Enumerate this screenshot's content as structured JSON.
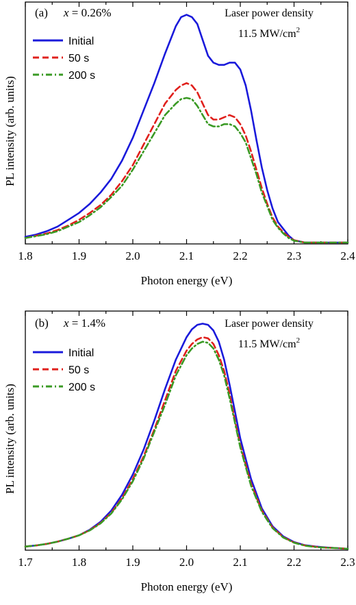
{
  "chart_data": [
    {
      "type": "line",
      "panel_label": "(a)",
      "annotation_var": "x",
      "annotation_value": " = 0.26%",
      "laser_line1": "Laser power density",
      "laser_line2": "11.5 MW/cm",
      "laser_sup": "2",
      "xlabel": "Photon energy (eV)",
      "ylabel": "PL intensity (arb. units)",
      "xlim": [
        1.8,
        2.4
      ],
      "ylim": [
        0,
        1.05
      ],
      "xticks": [
        "1.8",
        "1.9",
        "2.0",
        "2.1",
        "2.2",
        "2.3",
        "2.4"
      ],
      "xtick_values": [
        1.8,
        1.9,
        2.0,
        2.1,
        2.2,
        2.3,
        2.4
      ],
      "legend_position": "top-left",
      "series": [
        {
          "name": "Initial",
          "color": "#1a1adb",
          "dash": "solid",
          "x": [
            1.8,
            1.82,
            1.84,
            1.86,
            1.88,
            1.9,
            1.92,
            1.94,
            1.96,
            1.98,
            2.0,
            2.02,
            2.04,
            2.06,
            2.08,
            2.09,
            2.1,
            2.11,
            2.12,
            2.13,
            2.14,
            2.15,
            2.16,
            2.17,
            2.18,
            2.19,
            2.2,
            2.21,
            2.22,
            2.23,
            2.24,
            2.25,
            2.26,
            2.27,
            2.28,
            2.29,
            2.3,
            2.31,
            2.32,
            2.34,
            2.36,
            2.38,
            2.4
          ],
          "y": [
            0.025,
            0.035,
            0.05,
            0.07,
            0.1,
            0.13,
            0.17,
            0.22,
            0.28,
            0.36,
            0.46,
            0.58,
            0.7,
            0.83,
            0.95,
            0.99,
            1.0,
            0.99,
            0.96,
            0.89,
            0.82,
            0.79,
            0.78,
            0.78,
            0.79,
            0.79,
            0.76,
            0.69,
            0.58,
            0.45,
            0.33,
            0.23,
            0.15,
            0.09,
            0.06,
            0.03,
            0.01,
            0.005,
            0.0,
            0.0,
            0.0,
            0.0,
            0.0
          ]
        },
        {
          "name": "50 s",
          "color": "#e0201c",
          "dash": "dashed",
          "x": [
            1.8,
            1.82,
            1.84,
            1.86,
            1.88,
            1.9,
            1.92,
            1.94,
            1.96,
            1.98,
            2.0,
            2.02,
            2.04,
            2.06,
            2.08,
            2.09,
            2.1,
            2.11,
            2.12,
            2.13,
            2.14,
            2.15,
            2.16,
            2.17,
            2.18,
            2.19,
            2.2,
            2.21,
            2.22,
            2.23,
            2.24,
            2.25,
            2.26,
            2.27,
            2.28,
            2.29,
            2.3,
            2.31,
            2.32,
            2.34,
            2.36,
            2.38,
            2.4
          ],
          "y": [
            0.02,
            0.03,
            0.04,
            0.055,
            0.075,
            0.1,
            0.13,
            0.165,
            0.21,
            0.27,
            0.34,
            0.43,
            0.52,
            0.61,
            0.67,
            0.69,
            0.7,
            0.69,
            0.66,
            0.61,
            0.56,
            0.54,
            0.54,
            0.55,
            0.56,
            0.55,
            0.52,
            0.47,
            0.4,
            0.32,
            0.24,
            0.17,
            0.11,
            0.07,
            0.045,
            0.025,
            0.01,
            0.005,
            0.0,
            0.0,
            0.0,
            0.0,
            0.0
          ]
        },
        {
          "name": "200 s",
          "color": "#3a9a24",
          "dash": "dashdot",
          "x": [
            1.8,
            1.82,
            1.84,
            1.86,
            1.88,
            1.9,
            1.92,
            1.94,
            1.96,
            1.98,
            2.0,
            2.02,
            2.04,
            2.06,
            2.08,
            2.09,
            2.1,
            2.11,
            2.12,
            2.13,
            2.14,
            2.15,
            2.16,
            2.17,
            2.18,
            2.19,
            2.2,
            2.21,
            2.22,
            2.23,
            2.24,
            2.25,
            2.26,
            2.27,
            2.28,
            2.29,
            2.3,
            2.31,
            2.32,
            2.34,
            2.36,
            2.38,
            2.4
          ],
          "y": [
            0.02,
            0.028,
            0.037,
            0.05,
            0.07,
            0.09,
            0.12,
            0.155,
            0.2,
            0.25,
            0.32,
            0.4,
            0.48,
            0.56,
            0.61,
            0.63,
            0.635,
            0.63,
            0.6,
            0.56,
            0.52,
            0.51,
            0.51,
            0.52,
            0.52,
            0.51,
            0.48,
            0.44,
            0.37,
            0.3,
            0.22,
            0.16,
            0.1,
            0.065,
            0.04,
            0.02,
            0.008,
            0.004,
            0.0,
            0.0,
            0.0,
            0.0,
            0.0
          ]
        }
      ]
    },
    {
      "type": "line",
      "panel_label": "(b)",
      "annotation_var": "x",
      "annotation_value": " = 1.4%",
      "laser_line1": "Laser power density",
      "laser_line2": "11.5 MW/cm",
      "laser_sup": "2",
      "xlabel": "Photon energy (eV)",
      "ylabel": "PL intensity (arb. units)",
      "xlim": [
        1.7,
        2.3
      ],
      "ylim": [
        0,
        1.05
      ],
      "xticks": [
        "1.7",
        "1.8",
        "1.9",
        "2.0",
        "2.1",
        "2.2",
        "2.3"
      ],
      "xtick_values": [
        1.7,
        1.8,
        1.9,
        2.0,
        2.1,
        2.2,
        2.3
      ],
      "legend_position": "top-left",
      "series": [
        {
          "name": "Initial",
          "color": "#1a1adb",
          "dash": "solid",
          "x": [
            1.7,
            1.72,
            1.74,
            1.76,
            1.78,
            1.8,
            1.82,
            1.84,
            1.86,
            1.88,
            1.9,
            1.92,
            1.94,
            1.96,
            1.98,
            2.0,
            2.01,
            2.02,
            2.03,
            2.04,
            2.05,
            2.06,
            2.07,
            2.08,
            2.09,
            2.1,
            2.12,
            2.14,
            2.16,
            2.18,
            2.2,
            2.22,
            2.24,
            2.26,
            2.28,
            2.3
          ],
          "y": [
            0.01,
            0.015,
            0.022,
            0.032,
            0.045,
            0.06,
            0.085,
            0.12,
            0.17,
            0.24,
            0.33,
            0.44,
            0.57,
            0.71,
            0.84,
            0.94,
            0.975,
            0.995,
            1.0,
            0.995,
            0.97,
            0.92,
            0.84,
            0.73,
            0.61,
            0.49,
            0.31,
            0.18,
            0.1,
            0.055,
            0.03,
            0.016,
            0.01,
            0.006,
            0.003,
            0.0
          ]
        },
        {
          "name": "50 s",
          "color": "#e0201c",
          "dash": "dashed",
          "x": [
            1.7,
            1.72,
            1.74,
            1.76,
            1.78,
            1.8,
            1.82,
            1.84,
            1.86,
            1.88,
            1.9,
            1.92,
            1.94,
            1.96,
            1.98,
            2.0,
            2.01,
            2.02,
            2.03,
            2.04,
            2.05,
            2.06,
            2.07,
            2.08,
            2.09,
            2.1,
            2.12,
            2.14,
            2.16,
            2.18,
            2.2,
            2.22,
            2.24,
            2.26,
            2.28,
            2.3
          ],
          "y": [
            0.01,
            0.015,
            0.022,
            0.032,
            0.045,
            0.06,
            0.083,
            0.115,
            0.16,
            0.225,
            0.31,
            0.41,
            0.53,
            0.66,
            0.79,
            0.88,
            0.91,
            0.93,
            0.94,
            0.935,
            0.91,
            0.86,
            0.79,
            0.69,
            0.57,
            0.46,
            0.29,
            0.17,
            0.095,
            0.052,
            0.028,
            0.015,
            0.009,
            0.005,
            0.003,
            0.0
          ]
        },
        {
          "name": "200 s",
          "color": "#3a9a24",
          "dash": "dashdot",
          "x": [
            1.7,
            1.72,
            1.74,
            1.76,
            1.78,
            1.8,
            1.82,
            1.84,
            1.86,
            1.88,
            1.9,
            1.92,
            1.94,
            1.96,
            1.98,
            2.0,
            2.01,
            2.02,
            2.03,
            2.04,
            2.05,
            2.06,
            2.07,
            2.08,
            2.09,
            2.1,
            2.12,
            2.14,
            2.16,
            2.18,
            2.2,
            2.22,
            2.24,
            2.26,
            2.28,
            2.3
          ],
          "y": [
            0.01,
            0.015,
            0.022,
            0.032,
            0.045,
            0.06,
            0.082,
            0.113,
            0.157,
            0.22,
            0.3,
            0.4,
            0.52,
            0.64,
            0.77,
            0.86,
            0.89,
            0.91,
            0.92,
            0.915,
            0.89,
            0.84,
            0.77,
            0.67,
            0.56,
            0.45,
            0.28,
            0.165,
            0.092,
            0.05,
            0.027,
            0.014,
            0.008,
            0.005,
            0.003,
            0.0
          ]
        }
      ]
    }
  ]
}
